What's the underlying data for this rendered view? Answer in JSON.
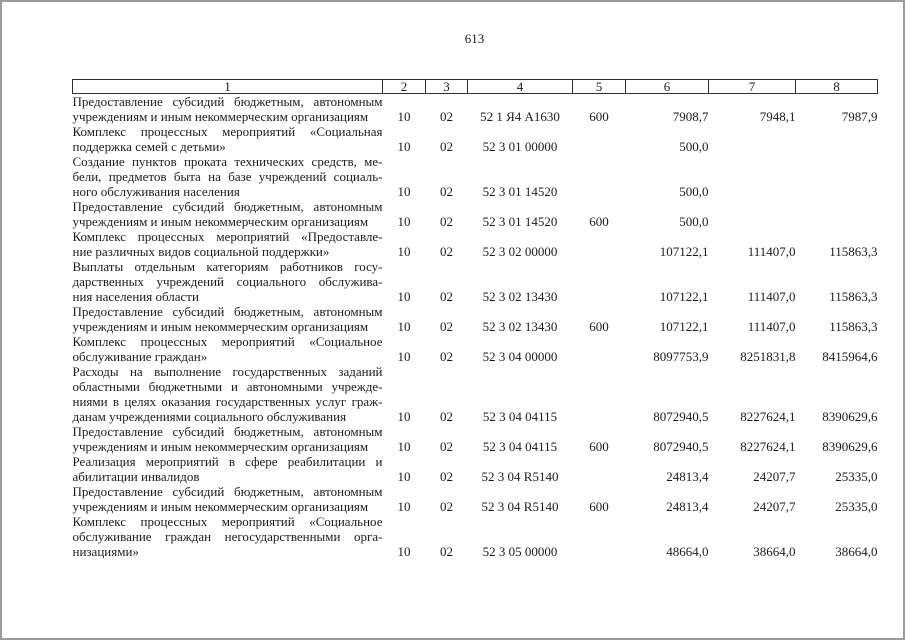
{
  "page": {
    "number": "613"
  },
  "table": {
    "header": [
      "1",
      "2",
      "3",
      "4",
      "5",
      "6",
      "7",
      "8"
    ],
    "rows": [
      {
        "c1": [
          "Предоставление субсидий бюджетным, автономным",
          "учреждениям и иным некоммерческим организациям"
        ],
        "c2": "10",
        "c3": "02",
        "c4": "52 1 Я4 А1630",
        "c5": "600",
        "c6": "7908,7",
        "c7": "7948,1",
        "c8": "7987,9"
      },
      {
        "c1": [
          "Комплекс процессных мероприятий «Социальная",
          "поддержка семей с детьми»"
        ],
        "c2": "10",
        "c3": "02",
        "c4": "52 3 01 00000",
        "c5": "",
        "c6": "500,0",
        "c7": "",
        "c8": ""
      },
      {
        "c1": [
          "Создание пунктов проката технических средств, ме-",
          "бели, предметов быта на базе учреждений социаль-",
          "ного обслуживания населения"
        ],
        "c2": "10",
        "c3": "02",
        "c4": "52 3 01 14520",
        "c5": "",
        "c6": "500,0",
        "c7": "",
        "c8": ""
      },
      {
        "c1": [
          "Предоставление субсидий бюджетным, автономным",
          "учреждениям и иным некоммерческим организациям"
        ],
        "c2": "10",
        "c3": "02",
        "c4": "52 3 01 14520",
        "c5": "600",
        "c6": "500,0",
        "c7": "",
        "c8": ""
      },
      {
        "c1": [
          "Комплекс процессных мероприятий «Предоставле-",
          "ние различных видов социальной поддержки»"
        ],
        "c2": "10",
        "c3": "02",
        "c4": "52 3 02 00000",
        "c5": "",
        "c6": "107122,1",
        "c7": "111407,0",
        "c8": "115863,3"
      },
      {
        "c1": [
          "Выплаты отдельным категориям работников госу-",
          "дарственных учреждений социального обслужива-",
          "ния населения области"
        ],
        "c2": "10",
        "c3": "02",
        "c4": "52 3 02 13430",
        "c5": "",
        "c6": "107122,1",
        "c7": "111407,0",
        "c8": "115863,3"
      },
      {
        "c1": [
          "Предоставление субсидий бюджетным, автономным",
          "учреждениям и иным некоммерческим организациям"
        ],
        "c2": "10",
        "c3": "02",
        "c4": "52 3 02 13430",
        "c5": "600",
        "c6": "107122,1",
        "c7": "111407,0",
        "c8": "115863,3"
      },
      {
        "c1": [
          "Комплекс процессных мероприятий «Социальное",
          "обслуживание граждан»"
        ],
        "c2": "10",
        "c3": "02",
        "c4": "52 3 04 00000",
        "c5": "",
        "c6": "8097753,9",
        "c7": "8251831,8",
        "c8": "8415964,6"
      },
      {
        "c1": [
          "Расходы на выполнение государственных заданий",
          "областными бюджетными и автономными учрежде-",
          "ниями в целях оказания государственных услуг граж-",
          "данам учреждениями социального обслуживания"
        ],
        "c2": "10",
        "c3": "02",
        "c4": "52 3 04 04115",
        "c5": "",
        "c6": "8072940,5",
        "c7": "8227624,1",
        "c8": "8390629,6"
      },
      {
        "c1": [
          "Предоставление субсидий бюджетным, автономным",
          "учреждениям и иным некоммерческим организациям"
        ],
        "c2": "10",
        "c3": "02",
        "c4": "52 3 04 04115",
        "c5": "600",
        "c6": "8072940,5",
        "c7": "8227624,1",
        "c8": "8390629,6"
      },
      {
        "c1": [
          "Реализация мероприятий в сфере реабилитации и",
          "абилитации инвалидов"
        ],
        "c2": "10",
        "c3": "02",
        "c4": "52 3 04 R5140",
        "c5": "",
        "c6": "24813,4",
        "c7": "24207,7",
        "c8": "25335,0"
      },
      {
        "c1": [
          "Предоставление субсидий бюджетным, автономным",
          "учреждениям и иным некоммерческим организациям"
        ],
        "c2": "10",
        "c3": "02",
        "c4": "52 3 04 R5140",
        "c5": "600",
        "c6": "24813,4",
        "c7": "24207,7",
        "c8": "25335,0"
      },
      {
        "c1": [
          "Комплекс процессных мероприятий «Социальное",
          "обслуживание граждан негосударственными орга-",
          "низациями»"
        ],
        "c2": "10",
        "c3": "02",
        "c4": "52 3 05 00000",
        "c5": "",
        "c6": "48664,0",
        "c7": "38664,0",
        "c8": "38664,0"
      }
    ]
  }
}
